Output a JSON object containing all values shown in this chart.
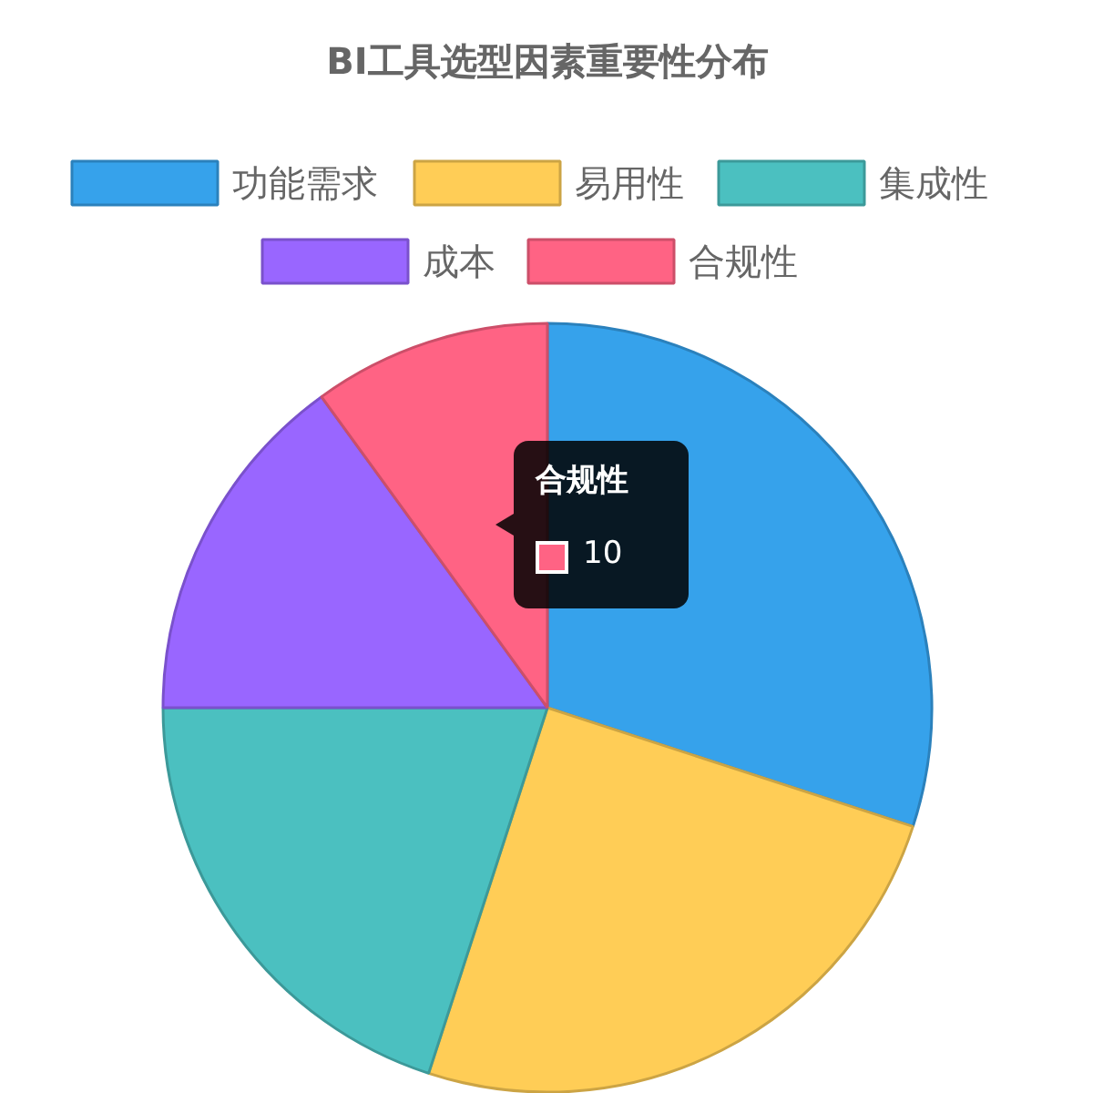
{
  "chart_data": {
    "type": "pie",
    "title": "BI工具选型因素重要性分布",
    "categories": [
      "功能需求",
      "易用性",
      "集成性",
      "成本",
      "合规性"
    ],
    "values": [
      30,
      25,
      20,
      15,
      10
    ],
    "colors": [
      "#36a2eb",
      "#ffcd56",
      "#4bc0c0",
      "#9966ff",
      "#ff6384"
    ],
    "legend": "top",
    "annotations": [
      "合规性",
      "10"
    ]
  }
}
